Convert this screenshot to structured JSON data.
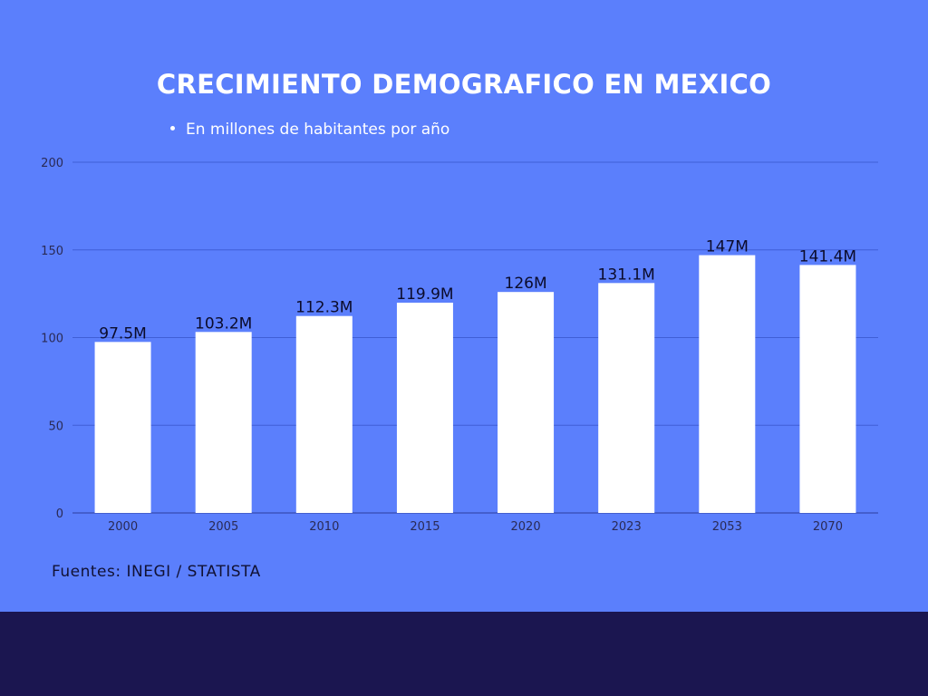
{
  "colors": {
    "background": "#5b7ffc",
    "bottom_band": "#1b1650",
    "bar": "#ffffff",
    "gridline": "#3f5fd6",
    "text_dark": "#0b0b2a"
  },
  "footer": {
    "source": "Fuentes: INEGI / STATISTA"
  },
  "chart_data": {
    "type": "bar",
    "title": "CRECIMIENTO DEMOGRAFICO EN MEXICO",
    "subtitle": "En millones de habitantes por año",
    "categories": [
      "2000",
      "2005",
      "2010",
      "2015",
      "2020",
      "2023",
      "2053",
      "2070"
    ],
    "values": [
      97.5,
      103.2,
      112.3,
      119.9,
      126,
      131.1,
      147,
      141.4
    ],
    "data_labels": [
      "97.5M",
      "103.2M",
      "112.3M",
      "119.9M",
      "126M",
      "131.1M",
      "147M",
      "141.4M"
    ],
    "yticks": [
      0,
      50,
      100,
      150,
      200
    ],
    "ylim": [
      0,
      200
    ],
    "xlabel": "",
    "ylabel": "",
    "grid": true,
    "legend": "none"
  }
}
